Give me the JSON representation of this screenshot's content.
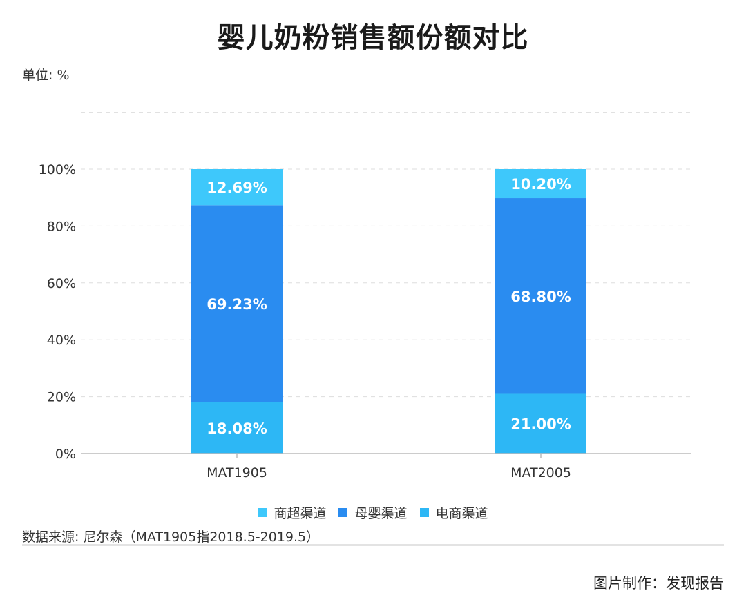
{
  "unit_label": "单位: %",
  "source_text": "数据来源: 尼尔森（MAT1905指2018.5-2019.5）",
  "credit_text": "图片制作：发现报告",
  "chart_data": {
    "type": "bar",
    "stacked": true,
    "title": "婴儿奶粉销售额份额对比",
    "xlabel": "",
    "ylabel": "",
    "categories": [
      "MAT1905",
      "MAT2005"
    ],
    "series": [
      {
        "name": "电商渠道",
        "values": [
          18.08,
          21.0
        ],
        "labels": [
          "18.08%",
          "21.00%"
        ],
        "color": "#2db7f5"
      },
      {
        "name": "母婴渠道",
        "values": [
          69.23,
          68.8
        ],
        "labels": [
          "69.23%",
          "68.80%"
        ],
        "color": "#2a8cf0"
      },
      {
        "name": "商超渠道",
        "values": [
          12.69,
          10.2
        ],
        "labels": [
          "12.69%",
          "10.20%"
        ],
        "color": "#3ec8fb"
      }
    ],
    "legend_order": [
      "商超渠道",
      "母婴渠道",
      "电商渠道"
    ],
    "ylim": [
      0,
      120
    ],
    "yticks": [
      0,
      20,
      40,
      60,
      80,
      100
    ],
    "ytick_labels": [
      "0%",
      "20%",
      "40%",
      "60%",
      "80%",
      "100%"
    ],
    "grid": true,
    "legend_position": "bottom"
  }
}
